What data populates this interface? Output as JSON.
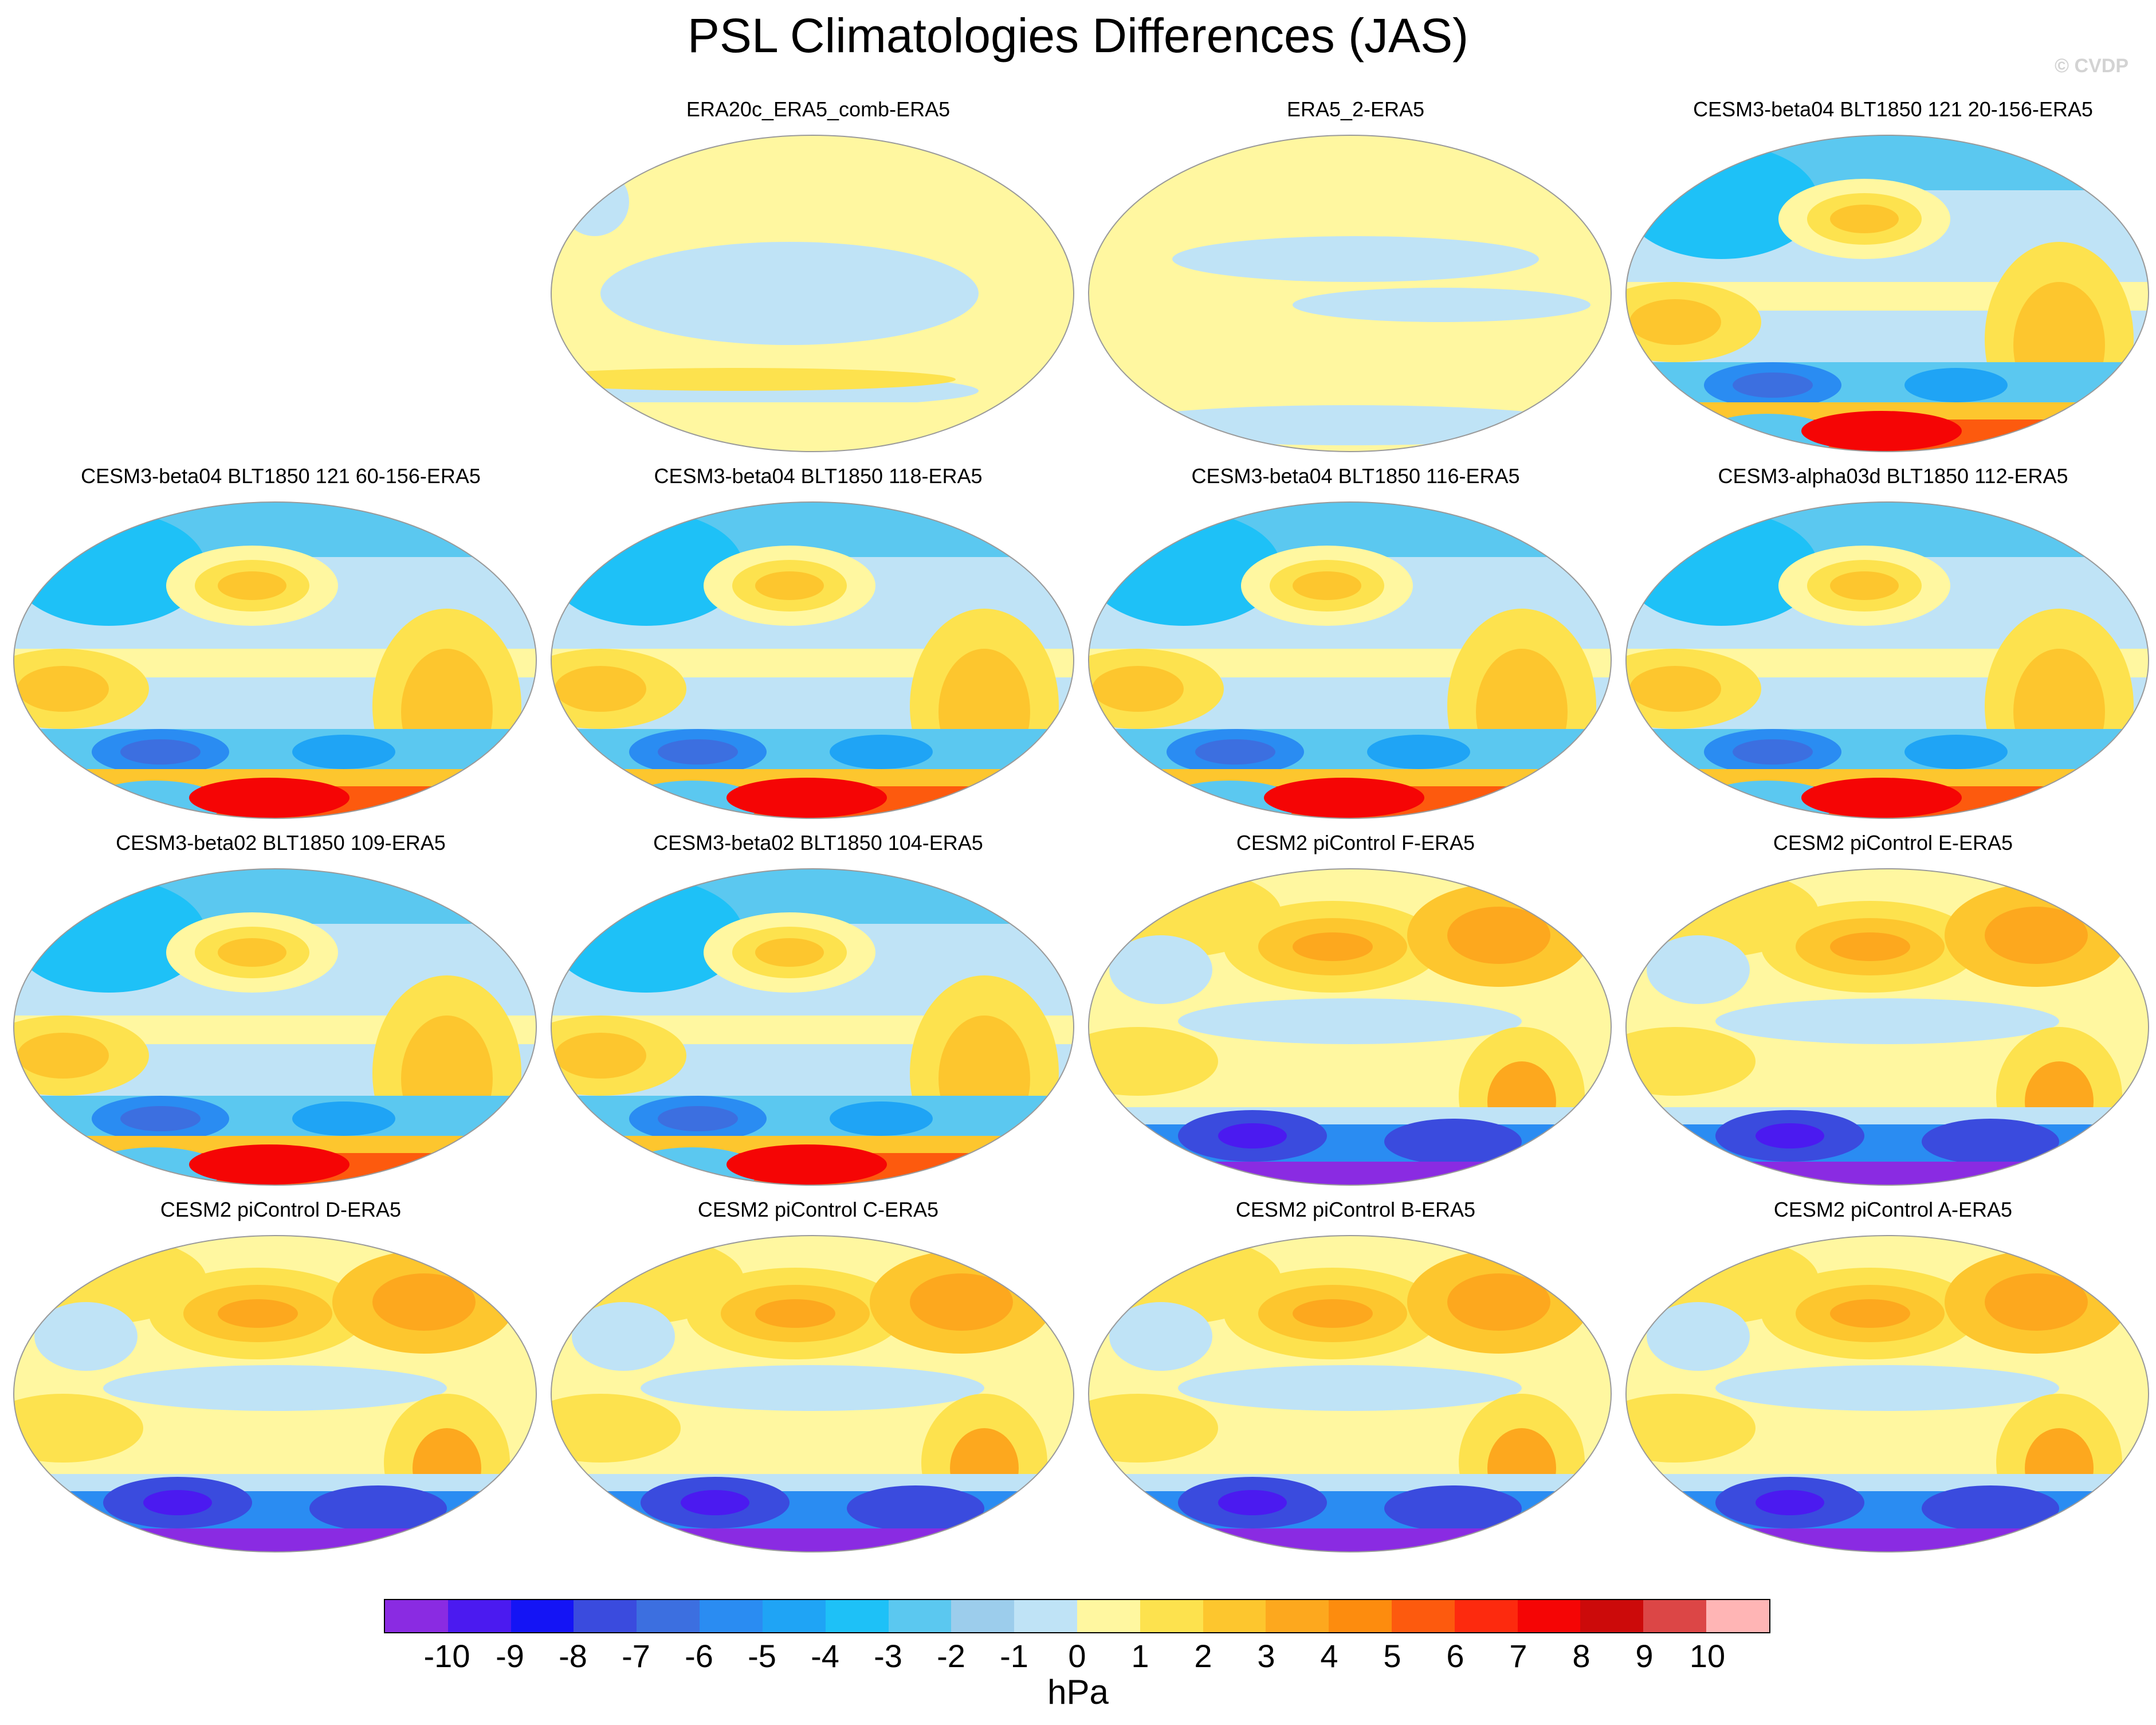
{
  "title": "PSL Climatologies Differences (JAS)",
  "credit": "© CVDP",
  "panels": [
    {
      "label": "ERA20c_ERA5_comb-ERA5",
      "style": "small"
    },
    {
      "label": "ERA5_2-ERA5",
      "style": "tiny"
    },
    {
      "label": "CESM3-beta04 BLT1850 121 20-156-ERA5",
      "style": "beta"
    },
    {
      "label": "CESM3-beta04 BLT1850 121 60-156-ERA5",
      "style": "beta"
    },
    {
      "label": "CESM3-beta04 BLT1850 118-ERA5",
      "style": "beta"
    },
    {
      "label": "CESM3-beta04 BLT1850 116-ERA5",
      "style": "beta"
    },
    {
      "label": "CESM3-alpha03d BLT1850 112-ERA5",
      "style": "beta"
    },
    {
      "label": "CESM3-beta02 BLT1850 109-ERA5",
      "style": "beta"
    },
    {
      "label": "CESM3-beta02 BLT1850 104-ERA5",
      "style": "beta"
    },
    {
      "label": "CESM2 piControl F-ERA5",
      "style": "cesm2"
    },
    {
      "label": "CESM2 piControl E-ERA5",
      "style": "cesm2"
    },
    {
      "label": "CESM2 piControl D-ERA5",
      "style": "cesm2"
    },
    {
      "label": "CESM2 piControl C-ERA5",
      "style": "cesm2"
    },
    {
      "label": "CESM2 piControl B-ERA5",
      "style": "cesm2"
    },
    {
      "label": "CESM2 piControl A-ERA5",
      "style": "cesm2"
    }
  ],
  "colorbar": {
    "units": "hPa",
    "ticks": [
      "-10",
      "-9",
      "-8",
      "-7",
      "-6",
      "-5",
      "-4",
      "-3",
      "-2",
      "-1",
      "0",
      "1",
      "2",
      "3",
      "4",
      "5",
      "6",
      "7",
      "8",
      "9",
      "10"
    ],
    "colors": [
      "#8a2be2",
      "#4b1af0",
      "#1414f5",
      "#3a4bde",
      "#3c6fe0",
      "#2a8cf2",
      "#1fa4f5",
      "#1ec1f7",
      "#5bc8f0",
      "#9ccdec",
      "#bfe3f6",
      "#fff7a0",
      "#fde24e",
      "#fdc62e",
      "#fda81e",
      "#fd8c0e",
      "#fd5a0e",
      "#fd2a0e",
      "#f50505",
      "#cc0a0a",
      "#dc4646",
      "#ffb5b5"
    ]
  }
}
